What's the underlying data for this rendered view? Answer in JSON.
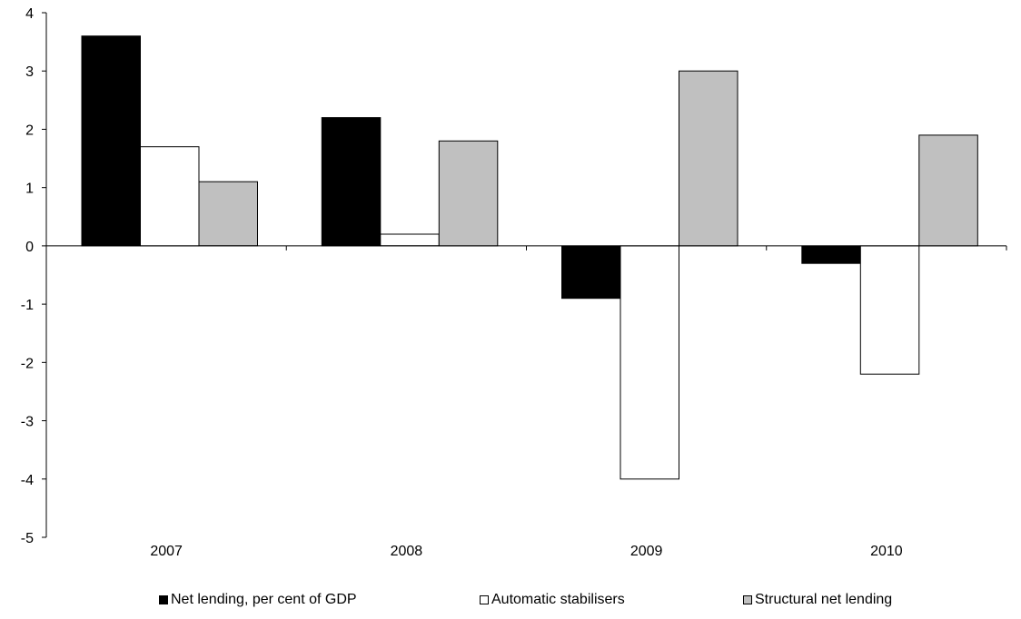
{
  "chart_data": {
    "type": "bar",
    "categories": [
      "2007",
      "2008",
      "2009",
      "2010"
    ],
    "series": [
      {
        "name": "Net lending, per cent of GDP",
        "values": [
          3.6,
          2.2,
          -0.9,
          -0.3
        ],
        "color": "#000000"
      },
      {
        "name": "Automatic stabilisers",
        "values": [
          1.7,
          0.2,
          -4.0,
          -2.2
        ],
        "color": "#ffffff"
      },
      {
        "name": "Structural net lending",
        "values": [
          1.1,
          1.8,
          3.0,
          1.9
        ],
        "color": "#c0c0c0"
      }
    ],
    "ylim": [
      -5,
      4
    ],
    "yticks": [
      "4",
      "3",
      "2",
      "1",
      "0",
      "-1",
      "-2",
      "-3",
      "-4",
      "-5"
    ],
    "ytick_values": [
      4,
      3,
      2,
      1,
      0,
      -1,
      -2,
      -3,
      -4,
      -5
    ],
    "title": "",
    "xlabel": "",
    "ylabel": "",
    "grid": false,
    "legend_position": "bottom"
  }
}
